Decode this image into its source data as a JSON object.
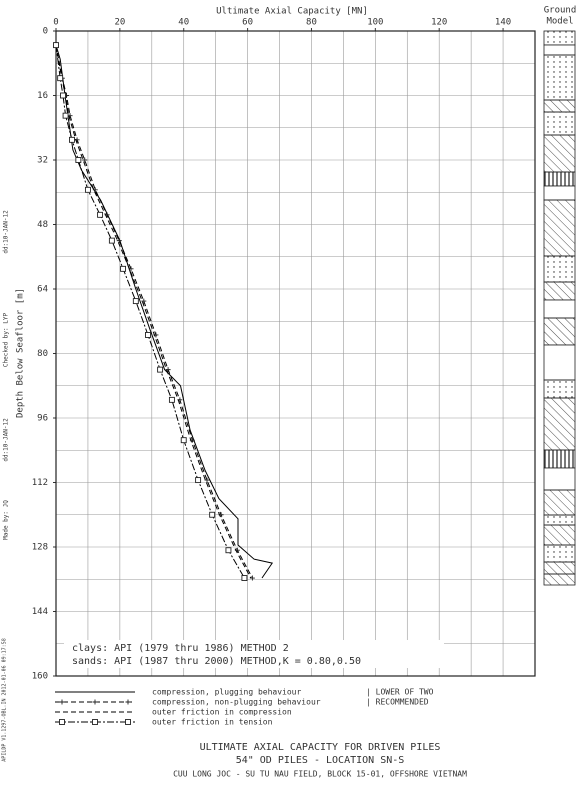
{
  "chart_data": {
    "type": "line",
    "x_label": "Ultimate Axial Capacity [MN]",
    "y_label": "Depth Below Seafloor [m]",
    "ground_model_label": [
      "Ground",
      "Model"
    ],
    "xlim": [
      0,
      150
    ],
    "xticks": [
      0,
      20,
      40,
      60,
      80,
      100,
      120,
      140
    ],
    "ylim": [
      0,
      160
    ],
    "yticks": [
      0,
      16,
      32,
      48,
      64,
      80,
      96,
      112,
      128,
      144,
      160
    ],
    "y_inverted": true,
    "x_axis_position": "top",
    "grid": true,
    "xgrid_step": 10,
    "ygrid_step": 8,
    "annotations": [
      "clays: API (1979 thru 1986) METHOD 2",
      "sands: API (1987 thru 2000) METHOD,K = 0.80,0.50"
    ],
    "series": [
      {
        "name": "compression, plugging behaviour",
        "color": "#000000",
        "line_style": "solid",
        "marker": "none",
        "x": [
          0,
          1.3,
          3,
          5.3,
          8,
          14,
          20,
          25,
          29.4,
          34,
          39,
          42,
          46.7,
          51,
          57,
          57,
          62,
          67.7,
          64.5
        ],
        "y": [
          3.5,
          7,
          17,
          29.5,
          34.5,
          42,
          52,
          64,
          74,
          84,
          88,
          99,
          109,
          116,
          121,
          127.5,
          131,
          132,
          135.7
        ]
      },
      {
        "name": "compression, non-plugging behaviour",
        "color": "#000000",
        "line_style": "dashed",
        "marker": "plus",
        "x": [
          0,
          2,
          3.3,
          4.4,
          6.6,
          9,
          12.3,
          16,
          19.8,
          23.5,
          27.5,
          31.3,
          35.1,
          38.8,
          42.7,
          47.3,
          51.7,
          56.8,
          61.5
        ],
        "y": [
          3.5,
          11.7,
          16,
          21,
          27,
          32,
          39.4,
          45.6,
          52,
          59,
          67,
          75.4,
          84,
          91.5,
          101.5,
          111.4,
          120,
          128.8,
          135.7
        ]
      },
      {
        "name": "outer friction in compression",
        "color": "#000000",
        "line_style": "dashed",
        "marker": "none",
        "x": [
          0,
          1.8,
          3,
          4,
          6.2,
          8.5,
          11.8,
          15.5,
          19.3,
          23,
          27,
          30.8,
          34.6,
          38.3,
          42.2,
          46.8,
          51.2,
          56.3,
          61
        ],
        "y": [
          3.5,
          11.7,
          16,
          21,
          27,
          32,
          39.4,
          45.6,
          52,
          59,
          67,
          75.4,
          84,
          91.5,
          101.5,
          111.4,
          120,
          128.8,
          135.7
        ]
      },
      {
        "name": "outer friction in tension",
        "color": "#000000",
        "line_style": "dashdot",
        "marker": "square",
        "x": [
          0,
          1.3,
          2.2,
          3,
          5,
          7,
          10,
          13.8,
          17.5,
          21,
          25,
          28.8,
          32.6,
          36.3,
          40,
          44.5,
          48.9,
          54,
          59
        ],
        "y": [
          3.5,
          11.7,
          16,
          21,
          27,
          32,
          39.4,
          45.6,
          52,
          59,
          67,
          75.4,
          84,
          91.5,
          101.5,
          111.4,
          120,
          128.8,
          135.7
        ]
      }
    ],
    "legend_notes": [
      "| LOWER OF TWO",
      "| RECOMMENDED"
    ],
    "footer": [
      "ULTIMATE AXIAL CAPACITY FOR DRIVEN PILES",
      "54\" OD PILES - LOCATION SN-S",
      "CUU LONG JOC - SU TU NAU FIELD, BLOCK 15-01, OFFSHORE VIETNAM"
    ],
    "side_notes": [
      "Made by: JQ",
      "dd:10-JAN-12",
      "Checked by: LYP",
      "dd:10-JAN-12",
      "APILDP V1.1297-OBL.IN 2012-01-06 09:17:58"
    ]
  }
}
